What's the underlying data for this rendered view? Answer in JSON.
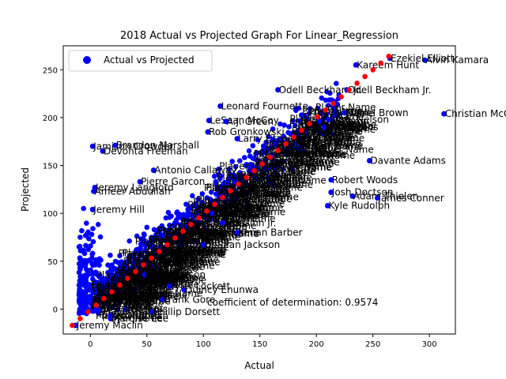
{
  "chart_data": {
    "type": "scatter",
    "title": "2018 Actual vs Projected Graph For Linear_Regression",
    "xlabel": "Actual",
    "ylabel": "Projected",
    "xlim": [
      -24,
      323
    ],
    "ylim": [
      -26,
      275
    ],
    "x_ticks": [
      0,
      50,
      100,
      150,
      200,
      250,
      300
    ],
    "y_ticks": [
      0,
      50,
      100,
      150,
      200,
      250
    ],
    "grid": false,
    "legend": {
      "entries": [
        "Actual vs Projected"
      ],
      "placement": "upper-left"
    },
    "colors": {
      "actual": "#0000ff",
      "fit_line": "#ff0000"
    },
    "annotation": "coefficient of determination: 0.9574",
    "labeled_points": [
      {
        "name": "Alvin Kamara",
        "x": 296,
        "y": 260
      },
      {
        "name": "Ezekiel Elliott",
        "x": 265,
        "y": 262
      },
      {
        "name": "Kareem Hunt",
        "x": 235,
        "y": 255
      },
      {
        "name": "Odell Beckham Jr.",
        "x": 166,
        "y": 229
      },
      {
        "name": "Odell Beckham Jr.",
        "x": 227,
        "y": 229
      },
      {
        "name": "Leonard Fournette",
        "x": 115,
        "y": 212
      },
      {
        "name": "LeSean McCoy",
        "x": 105,
        "y": 197
      },
      {
        "name": "A.J. Green",
        "x": 120,
        "y": 196
      },
      {
        "name": "Christian McCaffrey",
        "x": 313,
        "y": 204
      },
      {
        "name": "Rob Gronkowski",
        "x": 104,
        "y": 185
      },
      {
        "name": "Mike Evans",
        "x": 207,
        "y": 190
      },
      {
        "name": "Larry Fitzgerald",
        "x": 130,
        "y": 178
      },
      {
        "name": "Jamison Crowder",
        "x": 2,
        "y": 170
      },
      {
        "name": "Brandon Marshall",
        "x": 22,
        "y": 171
      },
      {
        "name": "Devonta Freeman",
        "x": 11,
        "y": 165
      },
      {
        "name": "Davante Adams",
        "x": 247,
        "y": 155
      },
      {
        "name": "Antonio Callaway",
        "x": 56,
        "y": 145
      },
      {
        "name": "Pierre Garcon",
        "x": 44,
        "y": 133
      },
      {
        "name": "Jeremy Langford",
        "x": 4,
        "y": 127
      },
      {
        "name": "Ameer Abdullah",
        "x": 3,
        "y": 123
      },
      {
        "name": "Jeremy Hill",
        "x": 2,
        "y": 104
      },
      {
        "name": "Robert Woods",
        "x": 213,
        "y": 135
      },
      {
        "name": "Adam Thielen",
        "x": 232,
        "y": 118
      },
      {
        "name": "James Conner",
        "x": 254,
        "y": 116
      },
      {
        "name": "Josh Doctson",
        "x": 213,
        "y": 122
      },
      {
        "name": "Kyle Rudolph",
        "x": 210,
        "y": 108
      },
      {
        "name": "Daniel Brown",
        "x": 225,
        "y": 205
      },
      {
        "name": "Eric Ebron",
        "x": 203,
        "y": 196
      },
      {
        "name": "Jordy Nelson",
        "x": 211,
        "y": 198
      },
      {
        "name": "Kenan Barber",
        "x": 130,
        "y": 80
      },
      {
        "name": "Ted Ginn Jr.",
        "x": 117,
        "y": 90
      },
      {
        "name": "Keelan Cole",
        "x": 108,
        "y": 100
      },
      {
        "name": "DeSean Jackson",
        "x": 100,
        "y": 67
      },
      {
        "name": "Chris Carson",
        "x": 48,
        "y": 36
      },
      {
        "name": "Tyler Lockett",
        "x": 70,
        "y": 24
      },
      {
        "name": "Quincy Enunwa",
        "x": 83,
        "y": 20
      },
      {
        "name": "Frank Gore",
        "x": 64,
        "y": 10
      },
      {
        "name": "Jeff Janis",
        "x": 32,
        "y": 0
      },
      {
        "name": "Trey Burton",
        "x": 7,
        "y": -1
      },
      {
        "name": "Marqise Lee",
        "x": 18,
        "y": -10
      },
      {
        "name": "Phillip Dorsett",
        "x": 55,
        "y": -3
      },
      {
        "name": "Jeremy Maclin",
        "x": -13,
        "y": -17
      },
      {
        "name": "Jaron Brown",
        "x": 18,
        "y": -7
      }
    ],
    "fit_line": {
      "x": [
        -16,
        264
      ],
      "y": [
        -17,
        264
      ]
    }
  }
}
